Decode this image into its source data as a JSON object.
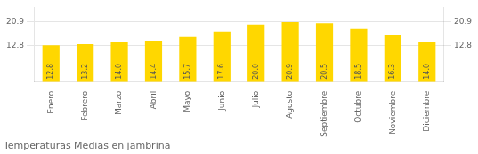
{
  "chart_data": {
    "type": "bar",
    "title": "Temperaturas Medias en jambrina",
    "categories": [
      "Enero",
      "Febrero",
      "Marzo",
      "Abril",
      "Mayo",
      "Junio",
      "Julio",
      "Agosto",
      "Septiembre",
      "Octubre",
      "Noviembre",
      "Diciembre"
    ],
    "values": [
      12.8,
      13.2,
      14.0,
      14.4,
      15.7,
      17.6,
      20.0,
      20.9,
      20.5,
      18.5,
      16.3,
      14.0
    ],
    "value_labels": [
      "12.8",
      "13.2",
      "14.0",
      "14.4",
      "15.7",
      "17.6",
      "20.0",
      "20.9",
      "20.5",
      "18.5",
      "16.3",
      "14.0"
    ],
    "color": "#FFD700",
    "ylim": [
      0,
      26.0
    ],
    "yticks": [
      12.8,
      20.9
    ],
    "y2lim": [
      0,
      26.0
    ],
    "y2ticks": [
      12.8,
      20.9
    ],
    "grid": true,
    "data_labels": true
  }
}
